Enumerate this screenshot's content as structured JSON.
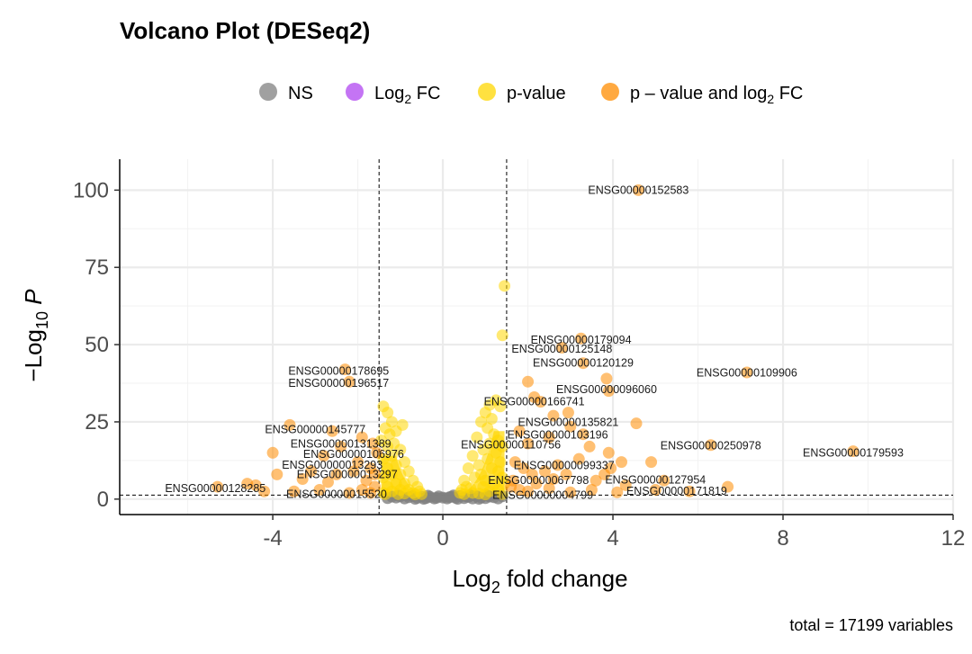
{
  "chart_data": {
    "type": "scatter",
    "title": "Volcano Plot (DESeq2)",
    "xlabel": {
      "prefix": "Log",
      "sub": "2",
      "suffix": " fold change"
    },
    "ylabel": {
      "prefix": "−Log",
      "sub": "10",
      "suffix": " P"
    },
    "caption": "total = 17199 variables",
    "xlim": [
      -7.6,
      12
    ],
    "ylim": [
      -5,
      110
    ],
    "x_ticks": [
      -4,
      0,
      4,
      8,
      12
    ],
    "x_tick_labels": [
      "-4",
      "0",
      "4",
      "8",
      "12"
    ],
    "y_ticks": [
      0,
      25,
      50,
      75,
      100
    ],
    "y_tick_labels": [
      "0",
      "25",
      "50",
      "75",
      "100"
    ],
    "grid": true,
    "legend_position": "top",
    "fc_cutoff": 1.5,
    "p_cutoff_log10": 1.3,
    "legend": [
      {
        "key": "NS",
        "label": "NS",
        "color": "#808080"
      },
      {
        "key": "FC",
        "label": "Log",
        "sub": "2",
        "suffix": " FC",
        "color": "#B046F0"
      },
      {
        "key": "P",
        "label": "p-value",
        "color": "#FFD700"
      },
      {
        "key": "PFC",
        "label": "p – value and log",
        "sub": "2",
        "suffix": " FC",
        "color": "#FF8C00"
      }
    ],
    "series": [
      {
        "key": "NS",
        "points": [
          [
            -1.3,
            0.3
          ],
          [
            -1.2,
            0.8
          ],
          [
            -1.1,
            0.5
          ],
          [
            -1.0,
            0.9
          ],
          [
            -0.9,
            0.2
          ],
          [
            -0.8,
            0.6
          ],
          [
            -0.7,
            1.0
          ],
          [
            -0.6,
            0.4
          ],
          [
            -0.5,
            0.8
          ],
          [
            -0.4,
            0.3
          ],
          [
            -0.3,
            0.7
          ],
          [
            -0.2,
            0.2
          ],
          [
            -0.1,
            0.9
          ],
          [
            0.0,
            0.5
          ],
          [
            0.1,
            0.2
          ],
          [
            0.2,
            0.8
          ],
          [
            0.3,
            0.4
          ],
          [
            0.4,
            1.0
          ],
          [
            0.5,
            0.3
          ],
          [
            0.6,
            0.7
          ],
          [
            0.7,
            0.2
          ],
          [
            0.8,
            0.9
          ],
          [
            0.9,
            0.5
          ],
          [
            1.0,
            0.3
          ],
          [
            1.1,
            0.8
          ],
          [
            1.2,
            0.6
          ],
          [
            1.3,
            0.2
          ],
          [
            1.4,
            0.9
          ],
          [
            -0.45,
            0.1
          ],
          [
            0.35,
            0.1
          ],
          [
            -0.15,
            0.4
          ],
          [
            0.15,
            0.6
          ],
          [
            0.55,
            0.9
          ],
          [
            -0.65,
            0.1
          ],
          [
            0.85,
            0.1
          ],
          [
            1.05,
            1.1
          ],
          [
            -1.05,
            1.1
          ],
          [
            -0.35,
            1.1
          ],
          [
            0.25,
            1.2
          ],
          [
            0.65,
            1.2
          ]
        ]
      },
      {
        "key": "P",
        "points": [
          [
            1.45,
            69
          ],
          [
            1.4,
            53
          ],
          [
            1.1,
            30.5
          ],
          [
            1.0,
            28
          ],
          [
            1.25,
            32
          ],
          [
            1.35,
            30
          ],
          [
            1.15,
            26
          ],
          [
            0.9,
            25
          ],
          [
            1.05,
            23
          ],
          [
            1.2,
            21
          ],
          [
            1.3,
            19
          ],
          [
            0.8,
            20
          ],
          [
            1.1,
            18
          ],
          [
            1.4,
            17
          ],
          [
            0.95,
            16
          ],
          [
            1.25,
            15
          ],
          [
            0.7,
            14
          ],
          [
            1.05,
            13
          ],
          [
            1.35,
            12
          ],
          [
            0.85,
            11
          ],
          [
            1.15,
            10
          ],
          [
            0.6,
            10
          ],
          [
            1.3,
            9
          ],
          [
            0.9,
            8
          ],
          [
            0.75,
            7
          ],
          [
            1.4,
            7
          ],
          [
            0.5,
            6
          ],
          [
            1.0,
            6
          ],
          [
            0.55,
            4
          ],
          [
            0.95,
            4
          ],
          [
            0.45,
            3
          ],
          [
            1.2,
            4.5
          ],
          [
            0.65,
            3.5
          ],
          [
            1.45,
            5
          ],
          [
            0.4,
            2
          ],
          [
            0.7,
            2
          ],
          [
            1.1,
            2.5
          ],
          [
            1.3,
            3
          ],
          [
            0.5,
            1.6
          ],
          [
            0.85,
            1.8
          ],
          [
            1.0,
            1.5
          ],
          [
            1.4,
            1.6
          ],
          [
            -1.4,
            30
          ],
          [
            -1.3,
            28
          ],
          [
            -1.2,
            25
          ],
          [
            -1.35,
            23
          ],
          [
            -1.1,
            22
          ],
          [
            -1.25,
            21
          ],
          [
            -0.95,
            24
          ],
          [
            -1.45,
            19
          ],
          [
            -1.15,
            18
          ],
          [
            -1.3,
            17
          ],
          [
            -1.0,
            16
          ],
          [
            -1.2,
            14
          ],
          [
            -1.4,
            13
          ],
          [
            -0.9,
            12
          ],
          [
            -1.1,
            11
          ],
          [
            -1.3,
            10
          ],
          [
            -0.8,
            9
          ],
          [
            -1.0,
            8
          ],
          [
            -1.2,
            8
          ],
          [
            -0.7,
            6
          ],
          [
            -1.4,
            7
          ],
          [
            -0.9,
            5
          ],
          [
            -1.1,
            5
          ],
          [
            -0.6,
            4
          ],
          [
            -1.3,
            4
          ],
          [
            -0.8,
            3
          ],
          [
            -1.0,
            3
          ],
          [
            -0.55,
            2.5
          ],
          [
            -1.2,
            2.5
          ],
          [
            -0.7,
            2
          ],
          [
            -0.9,
            1.8
          ],
          [
            -1.4,
            2
          ],
          [
            -0.5,
            1.6
          ],
          [
            -1.05,
            1.6
          ],
          [
            -0.65,
            1.5
          ],
          [
            -1.35,
            1.6
          ]
        ]
      },
      {
        "key": "PFC",
        "points": [
          [
            4.6,
            100
          ],
          [
            3.25,
            52
          ],
          [
            2.8,
            49
          ],
          [
            3.3,
            44
          ],
          [
            7.15,
            41
          ],
          [
            2.0,
            38
          ],
          [
            3.85,
            39
          ],
          [
            3.9,
            35
          ],
          [
            2.15,
            33
          ],
          [
            2.3,
            31.5
          ],
          [
            2.95,
            28
          ],
          [
            2.6,
            27
          ],
          [
            4.55,
            24.5
          ],
          [
            3.0,
            23.5
          ],
          [
            3.3,
            21
          ],
          [
            3.45,
            17
          ],
          [
            6.3,
            17.5
          ],
          [
            9.65,
            15.5
          ],
          [
            3.9,
            15
          ],
          [
            4.9,
            12
          ],
          [
            3.95,
            10
          ],
          [
            2.9,
            8
          ],
          [
            2.6,
            6.5
          ],
          [
            5.2,
            6
          ],
          [
            4.3,
            4.5
          ],
          [
            2.5,
            3.5
          ],
          [
            3.5,
            3
          ],
          [
            5.0,
            3
          ],
          [
            4.1,
            2.2
          ],
          [
            3.0,
            2.2
          ],
          [
            2.2,
            5
          ],
          [
            2.7,
            11
          ],
          [
            3.2,
            13
          ],
          [
            2.0,
            18
          ],
          [
            2.5,
            20
          ],
          [
            1.8,
            22
          ],
          [
            1.7,
            12
          ],
          [
            1.9,
            10
          ],
          [
            2.1,
            8
          ],
          [
            2.4,
            9
          ],
          [
            1.65,
            6
          ],
          [
            1.6,
            4
          ],
          [
            1.8,
            3
          ],
          [
            2.0,
            2.5
          ],
          [
            3.6,
            6
          ],
          [
            3.8,
            8
          ],
          [
            4.2,
            12
          ],
          [
            6.7,
            4
          ],
          [
            5.8,
            2.5
          ],
          [
            -2.3,
            42
          ],
          [
            -2.2,
            38
          ],
          [
            -2.6,
            22
          ],
          [
            -3.6,
            24
          ],
          [
            -4.0,
            15
          ],
          [
            -2.4,
            17
          ],
          [
            -2.8,
            14
          ],
          [
            -1.9,
            20
          ],
          [
            -2.0,
            12
          ],
          [
            -1.7,
            10
          ],
          [
            -3.1,
            9
          ],
          [
            -2.5,
            8
          ],
          [
            -1.8,
            6
          ],
          [
            -3.9,
            8
          ],
          [
            -4.4,
            4.5
          ],
          [
            -4.6,
            5
          ],
          [
            -5.3,
            4
          ],
          [
            -2.9,
            3
          ],
          [
            -3.5,
            2.5
          ],
          [
            -2.2,
            2
          ],
          [
            -1.9,
            3
          ],
          [
            -1.6,
            4
          ],
          [
            -1.7,
            2
          ],
          [
            -2.7,
            5.5
          ],
          [
            -3.3,
            6.5
          ],
          [
            -4.2,
            2.5
          ],
          [
            -2.1,
            9
          ],
          [
            -1.6,
            8
          ],
          [
            -1.55,
            15
          ],
          [
            -1.65,
            18
          ]
        ]
      }
    ],
    "labels": [
      {
        "text": "ENSG00000152583",
        "x": 4.6,
        "y": 100
      },
      {
        "text": "ENSG00000179094",
        "x": 3.25,
        "y": 51.5
      },
      {
        "text": "ENSG00000125148",
        "x": 2.8,
        "y": 48.5
      },
      {
        "text": "ENSG00000120129",
        "x": 3.3,
        "y": 44
      },
      {
        "text": "ENSG00000109906",
        "x": 7.15,
        "y": 40.8
      },
      {
        "text": "ENSG00000178695",
        "x": -2.45,
        "y": 41.5
      },
      {
        "text": "ENSG00000196517",
        "x": -2.45,
        "y": 37.5
      },
      {
        "text": "ENSG00000096060",
        "x": 3.85,
        "y": 35.5
      },
      {
        "text": "ENSG00000166741",
        "x": 2.15,
        "y": 31.5
      },
      {
        "text": "ENSG00000135821",
        "x": 2.95,
        "y": 24.8
      },
      {
        "text": "ENSG00000145777",
        "x": -3.0,
        "y": 22.5
      },
      {
        "text": "ENSG00000103196",
        "x": 2.7,
        "y": 20.8
      },
      {
        "text": "ENSG00000131389",
        "x": -2.4,
        "y": 17.8
      },
      {
        "text": "ENSG00000110756",
        "x": 1.6,
        "y": 17.5
      },
      {
        "text": "ENSG00000250978",
        "x": 6.3,
        "y": 17.3
      },
      {
        "text": "ENSG00000106976",
        "x": -2.1,
        "y": 14.5
      },
      {
        "text": "ENSG00000179593",
        "x": 9.65,
        "y": 15
      },
      {
        "text": "ENSG00000013293",
        "x": -2.6,
        "y": 11
      },
      {
        "text": "ENSG00000099337",
        "x": 2.85,
        "y": 10.8
      },
      {
        "text": "ENSG00000013297",
        "x": -2.25,
        "y": 8
      },
      {
        "text": "ENSG00000067798",
        "x": 2.25,
        "y": 6
      },
      {
        "text": "ENSG00000127954",
        "x": 5.0,
        "y": 6.2
      },
      {
        "text": "ENSG00000128285",
        "x": -5.35,
        "y": 3.5
      },
      {
        "text": "ENSG00000171819",
        "x": 5.5,
        "y": 2.5
      },
      {
        "text": "ENSG00000015520",
        "x": -2.5,
        "y": 1.5
      },
      {
        "text": "ENSG00000004799",
        "x": 2.35,
        "y": 1.3
      }
    ]
  }
}
